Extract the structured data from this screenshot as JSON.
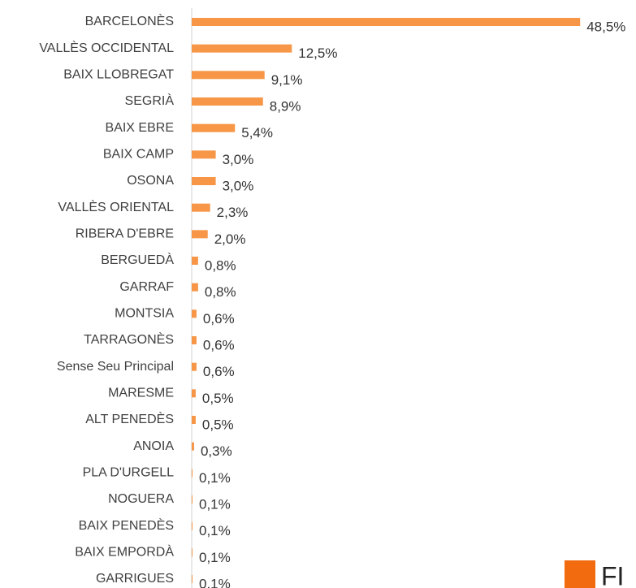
{
  "chart_data": {
    "type": "hbar",
    "categories": [
      "BARCELONÈS",
      "VALLÈS OCCIDENTAL",
      "BAIX LLOBREGAT",
      "SEGRIÀ",
      "BAIX EBRE",
      "BAIX CAMP",
      "OSONA",
      "VALLÈS ORIENTAL",
      "RIBERA D'EBRE",
      "BERGUEDÀ",
      "GARRAF",
      "MONTSIA",
      "TARRAGONÈS",
      "Sense Seu Principal",
      "MARESME",
      "ALT PENEDÈS",
      "ANOIA",
      "PLA D'URGELL",
      "NOGUERA",
      "BAIX PENEDÈS",
      "BAIX EMPORDÀ",
      "GARRIGUES"
    ],
    "values": [
      48.5,
      12.5,
      9.1,
      8.9,
      5.4,
      3.0,
      3.0,
      2.3,
      2.0,
      0.8,
      0.8,
      0.6,
      0.6,
      0.6,
      0.5,
      0.5,
      0.3,
      0.1,
      0.1,
      0.1,
      0.1,
      0.1
    ],
    "value_labels": [
      "48,5%",
      "12,5%",
      "9,1%",
      "8,9%",
      "5,4%",
      "3,0%",
      "3,0%",
      "2,3%",
      "2,0%",
      "0,8%",
      "0,8%",
      "0,6%",
      "0,6%",
      "0,6%",
      "0,5%",
      "0,5%",
      "0,3%",
      "0,1%",
      "0,1%",
      "0,1%",
      "0,1%",
      "0,1%"
    ],
    "color": "#f79646",
    "xlim": [
      0,
      50
    ]
  },
  "logo_text": "FI"
}
